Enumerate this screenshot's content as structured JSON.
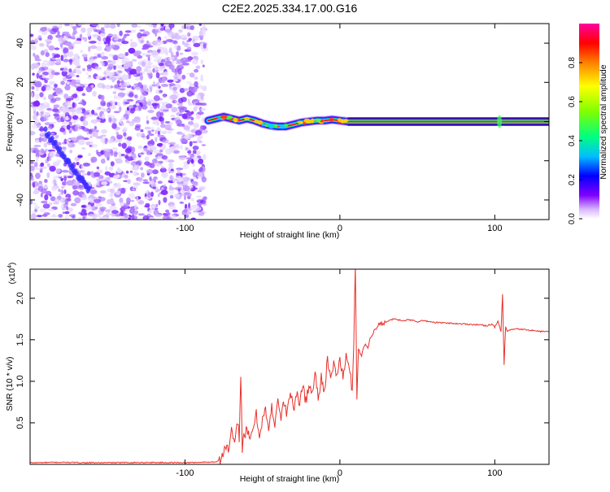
{
  "page_title": "C2E2.2025.334.17.00.G16",
  "chart_data": [
    {
      "type": "heatmap",
      "title": "C2E2.2025.334.17.00.G16",
      "xlabel": "Height of straight line (km)",
      "ylabel": "Frequency (Hz)",
      "xlim": [
        -200,
        135
      ],
      "ylim": [
        -50,
        50
      ],
      "x_ticks": [
        -100,
        0,
        100
      ],
      "x_tick_labels": [
        "-100",
        "0",
        "100"
      ],
      "y_ticks": [
        -40,
        -20,
        0,
        20,
        40
      ],
      "y_tick_labels": [
        "-40",
        "-20",
        "0",
        "20",
        "40"
      ],
      "noise_region_x": [
        -200,
        -87
      ],
      "dominant_line": [
        [
          -85,
          0.5
        ],
        [
          -80,
          1.5
        ],
        [
          -75,
          2.5
        ],
        [
          -70,
          1.5
        ],
        [
          -65,
          0.5
        ],
        [
          -60,
          1.5
        ],
        [
          -55,
          0.5
        ],
        [
          -50,
          -1.0
        ],
        [
          -45,
          -2.0
        ],
        [
          -40,
          -2.5
        ],
        [
          -35,
          -2.5
        ],
        [
          -30,
          -1.5
        ],
        [
          -25,
          -0.5
        ],
        [
          -20,
          0.0
        ],
        [
          -15,
          0.5
        ],
        [
          -10,
          0.5
        ],
        [
          -5,
          1.0
        ],
        [
          0,
          0.5
        ],
        [
          5,
          0.0
        ],
        [
          135,
          0.0
        ]
      ],
      "colorbar": {
        "label": "Normalized spectral amplitude",
        "range": [
          0,
          1
        ],
        "ticks": [
          0.0,
          0.2,
          0.4,
          0.6,
          0.8
        ],
        "tick_labels": [
          "0.0",
          "0.2",
          "0.4",
          "0.6",
          "0.8"
        ],
        "colors": [
          "#ffffff",
          "#c080ff",
          "#8000ff",
          "#0000ff",
          "#00c0ff",
          "#00ff80",
          "#80ff00",
          "#ffff00",
          "#ff8000",
          "#ff0000",
          "#ff00a0"
        ]
      }
    },
    {
      "type": "line",
      "xlabel": "Height of straight line (km)",
      "ylabel": "SNR (10 * v/v)",
      "y_scale_label": "(x10",
      "y_scale_exponent": "4",
      "xlim": [
        -200,
        135
      ],
      "ylim": [
        0,
        23500
      ],
      "x_ticks": [
        -100,
        0,
        100
      ],
      "x_tick_labels": [
        "-100",
        "0",
        "100"
      ],
      "y_ticks": [
        5000,
        10000,
        15000,
        20000
      ],
      "y_tick_labels": [
        "0.5",
        "1.0",
        "1.5",
        "2.0"
      ],
      "color": "#e8302a",
      "series": [
        {
          "name": "SNR",
          "x": [
            -200,
            -180,
            -160,
            -140,
            -120,
            -100,
            -90,
            -80,
            -76,
            -74,
            -72,
            -70,
            -68,
            -66,
            -65,
            -64,
            -63,
            -62,
            -60,
            -58,
            -56,
            -54,
            -52,
            -50,
            -48,
            -46,
            -44,
            -42,
            -40,
            -38,
            -36,
            -34,
            -32,
            -30,
            -28,
            -26,
            -24,
            -22,
            -20,
            -18,
            -16,
            -14,
            -12,
            -10,
            -8,
            -6,
            -4,
            -2,
            0,
            2,
            4,
            6,
            8,
            9,
            10,
            11,
            12,
            14,
            16,
            18,
            20,
            22,
            24,
            26,
            28,
            30,
            35,
            40,
            45,
            50,
            55,
            60,
            70,
            80,
            90,
            95,
            98,
            100,
            102,
            104,
            105,
            106,
            107,
            108,
            110,
            115,
            120,
            125,
            130,
            135
          ],
          "values": [
            200,
            250,
            200,
            220,
            230,
            200,
            250,
            300,
            800,
            2500,
            1500,
            4000,
            2000,
            5500,
            3000,
            11200,
            2000,
            3500,
            4000,
            2800,
            4500,
            6000,
            3500,
            5500,
            6500,
            4000,
            6800,
            5000,
            8000,
            5500,
            7500,
            6000,
            9000,
            6500,
            8500,
            7000,
            10000,
            7500,
            9500,
            8500,
            11000,
            8000,
            10500,
            9000,
            12500,
            10000,
            12000,
            11000,
            12500,
            10500,
            13000,
            11500,
            9000,
            15000,
            24000,
            8000,
            14000,
            13000,
            14500,
            14000,
            15500,
            16000,
            16500,
            17000,
            17000,
            17200,
            17500,
            17300,
            17400,
            17200,
            17300,
            17100,
            17000,
            16900,
            16800,
            16700,
            16900,
            16500,
            17200,
            16000,
            20500,
            12000,
            16500,
            16000,
            16200,
            16300,
            16200,
            16100,
            16000,
            16000
          ]
        }
      ]
    }
  ]
}
